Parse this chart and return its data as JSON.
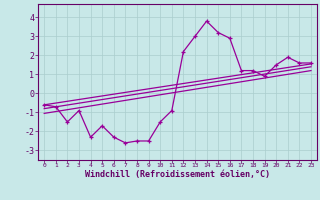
{
  "xlabel": "Windchill (Refroidissement éolien,°C)",
  "xlim": [
    -0.5,
    23.5
  ],
  "ylim": [
    -3.5,
    4.7
  ],
  "yticks": [
    -3,
    -2,
    -1,
    0,
    1,
    2,
    3,
    4
  ],
  "xticks": [
    0,
    1,
    2,
    3,
    4,
    5,
    6,
    7,
    8,
    9,
    10,
    11,
    12,
    13,
    14,
    15,
    16,
    17,
    18,
    19,
    20,
    21,
    22,
    23
  ],
  "bg_color": "#c8e8e8",
  "line_color": "#990099",
  "main_line_x": [
    0,
    1,
    2,
    3,
    4,
    5,
    6,
    7,
    8,
    9,
    10,
    11,
    12,
    13,
    14,
    15,
    16,
    17,
    18,
    19,
    20,
    21,
    22,
    23
  ],
  "main_line_y": [
    -0.6,
    -0.7,
    -1.5,
    -0.9,
    -2.3,
    -1.7,
    -2.3,
    -2.6,
    -2.5,
    -2.5,
    -1.5,
    -0.9,
    2.2,
    3.0,
    3.8,
    3.2,
    2.9,
    1.2,
    1.2,
    0.9,
    1.5,
    1.9,
    1.6,
    1.6
  ],
  "trend_lines": [
    {
      "x0": 0,
      "y0": -0.6,
      "x1": 23,
      "y1": 1.55
    },
    {
      "x0": 0,
      "y0": -0.8,
      "x1": 23,
      "y1": 1.4
    },
    {
      "x0": 0,
      "y0": -1.05,
      "x1": 23,
      "y1": 1.2
    }
  ],
  "grid_color": "#aacece",
  "tick_color": "#660066",
  "spine_color": "#660066",
  "xlabel_fontsize": 6.0,
  "ytick_fontsize": 6.0,
  "xtick_fontsize": 4.5
}
